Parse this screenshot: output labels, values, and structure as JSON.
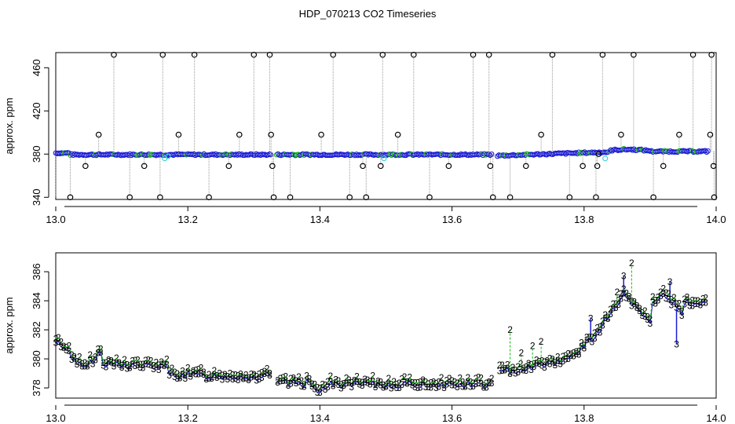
{
  "title": "HDP_070213  CO2 Timeseries",
  "colors": {
    "blue": "#1c1cd4",
    "green": "#14b414",
    "cyan": "#3cd2dc",
    "black": "#000000",
    "grey": "#9a9a9a"
  },
  "chart_data": [
    {
      "type": "scatter",
      "ylabel": "approx. ppm",
      "xlim": [
        13.0,
        14.0
      ],
      "ylim": [
        338,
        474
      ],
      "xticks": [
        "13.0",
        "13.2",
        "13.4",
        "13.6",
        "13.8",
        "14.0"
      ],
      "yticks": [
        "340",
        "380",
        "420",
        "460"
      ],
      "ytick_values": [
        340,
        380,
        420,
        460
      ],
      "grid": false,
      "outliers_high": [
        13.088,
        13.162,
        13.21,
        13.3,
        13.324,
        13.42,
        13.495,
        13.542,
        13.632,
        13.656,
        13.752,
        13.828,
        13.875,
        13.965,
        13.993
      ],
      "outliers_low": [
        13.022,
        13.112,
        13.158,
        13.232,
        13.33,
        13.355,
        13.445,
        13.47,
        13.566,
        13.662,
        13.688,
        13.778,
        13.818,
        13.905,
        13.997
      ],
      "outliers_mid": [
        [
          13.045,
          369
        ],
        [
          13.065,
          398
        ],
        [
          13.134,
          369
        ],
        [
          13.186,
          398
        ],
        [
          13.262,
          369
        ],
        [
          13.278,
          398
        ],
        [
          13.326,
          398
        ],
        [
          13.328,
          369
        ],
        [
          13.402,
          398
        ],
        [
          13.465,
          369
        ],
        [
          13.492,
          369
        ],
        [
          13.518,
          398
        ],
        [
          13.595,
          369
        ],
        [
          13.658,
          369
        ],
        [
          13.712,
          369
        ],
        [
          13.735,
          398
        ],
        [
          13.798,
          369
        ],
        [
          13.82,
          369
        ],
        [
          13.822,
          380
        ],
        [
          13.856,
          398
        ],
        [
          13.92,
          369
        ],
        [
          13.944,
          398
        ],
        [
          13.991,
          398
        ],
        [
          13.996,
          369
        ]
      ],
      "cyan_points": [
        [
          13.165,
          376
        ],
        [
          13.17,
          378
        ],
        [
          13.497,
          376
        ],
        [
          13.832,
          376
        ]
      ]
    },
    {
      "type": "scatter",
      "ylabel": "approx. ppm",
      "xlim": [
        13.0,
        14.0
      ],
      "ylim": [
        377.3,
        387.3
      ],
      "xticks": [
        "13.0",
        "13.2",
        "13.4",
        "13.6",
        "13.8",
        "14.0"
      ],
      "yticks": [
        "378",
        "380",
        "382",
        "384",
        "386"
      ],
      "ytick_values": [
        378,
        380,
        382,
        384,
        386
      ],
      "grid": false,
      "series": [
        {
          "marker": "3",
          "color": "blue"
        },
        {
          "marker": "2",
          "color": "green"
        }
      ],
      "green_spikes": [
        [
          13.688,
          382
        ],
        [
          13.705,
          380.4
        ],
        [
          13.722,
          380.9
        ],
        [
          13.735,
          381.2
        ],
        [
          13.85,
          384.6
        ],
        [
          13.872,
          386.6
        ]
      ],
      "blue_spikes": [
        [
          13.81,
          382.8
        ],
        [
          13.86,
          385.7
        ],
        [
          13.93,
          385.3
        ],
        [
          13.94,
          381
        ]
      ]
    }
  ]
}
